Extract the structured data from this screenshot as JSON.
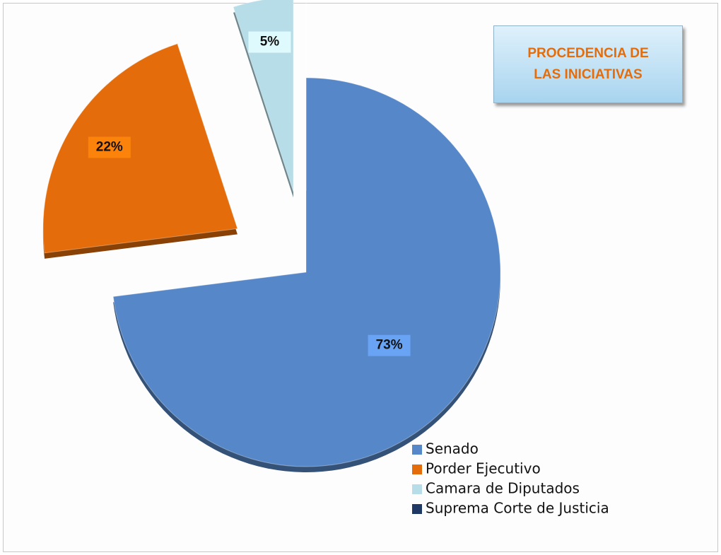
{
  "chart_data": {
    "type": "pie",
    "title": "PROCEDENCIA DE LAS INICIATIVAS",
    "categories": [
      "Senado",
      "Porder Ejecutivo",
      "Camara de Diputados",
      "Suprema Corte de Justicia"
    ],
    "values": [
      73,
      22,
      5,
      0
    ],
    "value_labels": [
      "73%",
      "22%",
      "5%",
      null
    ],
    "colors": [
      "#5687c8",
      "#e46c0a",
      "#b7dde8",
      "#1f3864"
    ]
  }
}
